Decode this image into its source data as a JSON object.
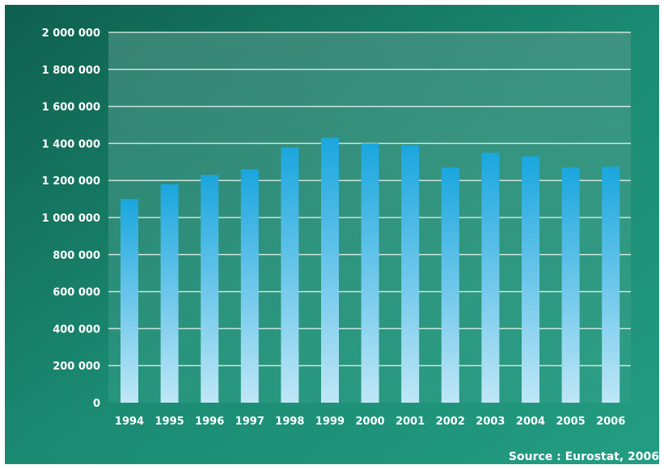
{
  "chart_data": {
    "type": "bar",
    "title": "",
    "xlabel": "",
    "ylabel": "",
    "categories": [
      "1994",
      "1995",
      "1996",
      "1997",
      "1998",
      "1999",
      "2000",
      "2001",
      "2002",
      "2003",
      "2004",
      "2005",
      "2006"
    ],
    "values": [
      1100000,
      1180000,
      1230000,
      1260000,
      1380000,
      1430000,
      1400000,
      1390000,
      1270000,
      1350000,
      1330000,
      1270000,
      1275000
    ],
    "ylim": [
      0,
      2000000
    ],
    "yticks": [
      0,
      200000,
      400000,
      600000,
      800000,
      1000000,
      1200000,
      1400000,
      1600000,
      1800000,
      2000000
    ],
    "ytick_labels": [
      "0",
      "200 000",
      "400 000",
      "600 000",
      "800 000",
      "1 000 000",
      "1 200 000",
      "1 400 000",
      "1 600 000",
      "1 800 000",
      "2 000 000"
    ],
    "grid": true,
    "source": "Source : Eurostat, 2006"
  },
  "colors": {
    "background_dark": "#0f6b57",
    "background_light": "#2aa88c",
    "bar_top": "#1aa6de",
    "bar_bottom": "#b8e4f6",
    "gridline": "#e6f4ef",
    "text": "#ffffff"
  }
}
